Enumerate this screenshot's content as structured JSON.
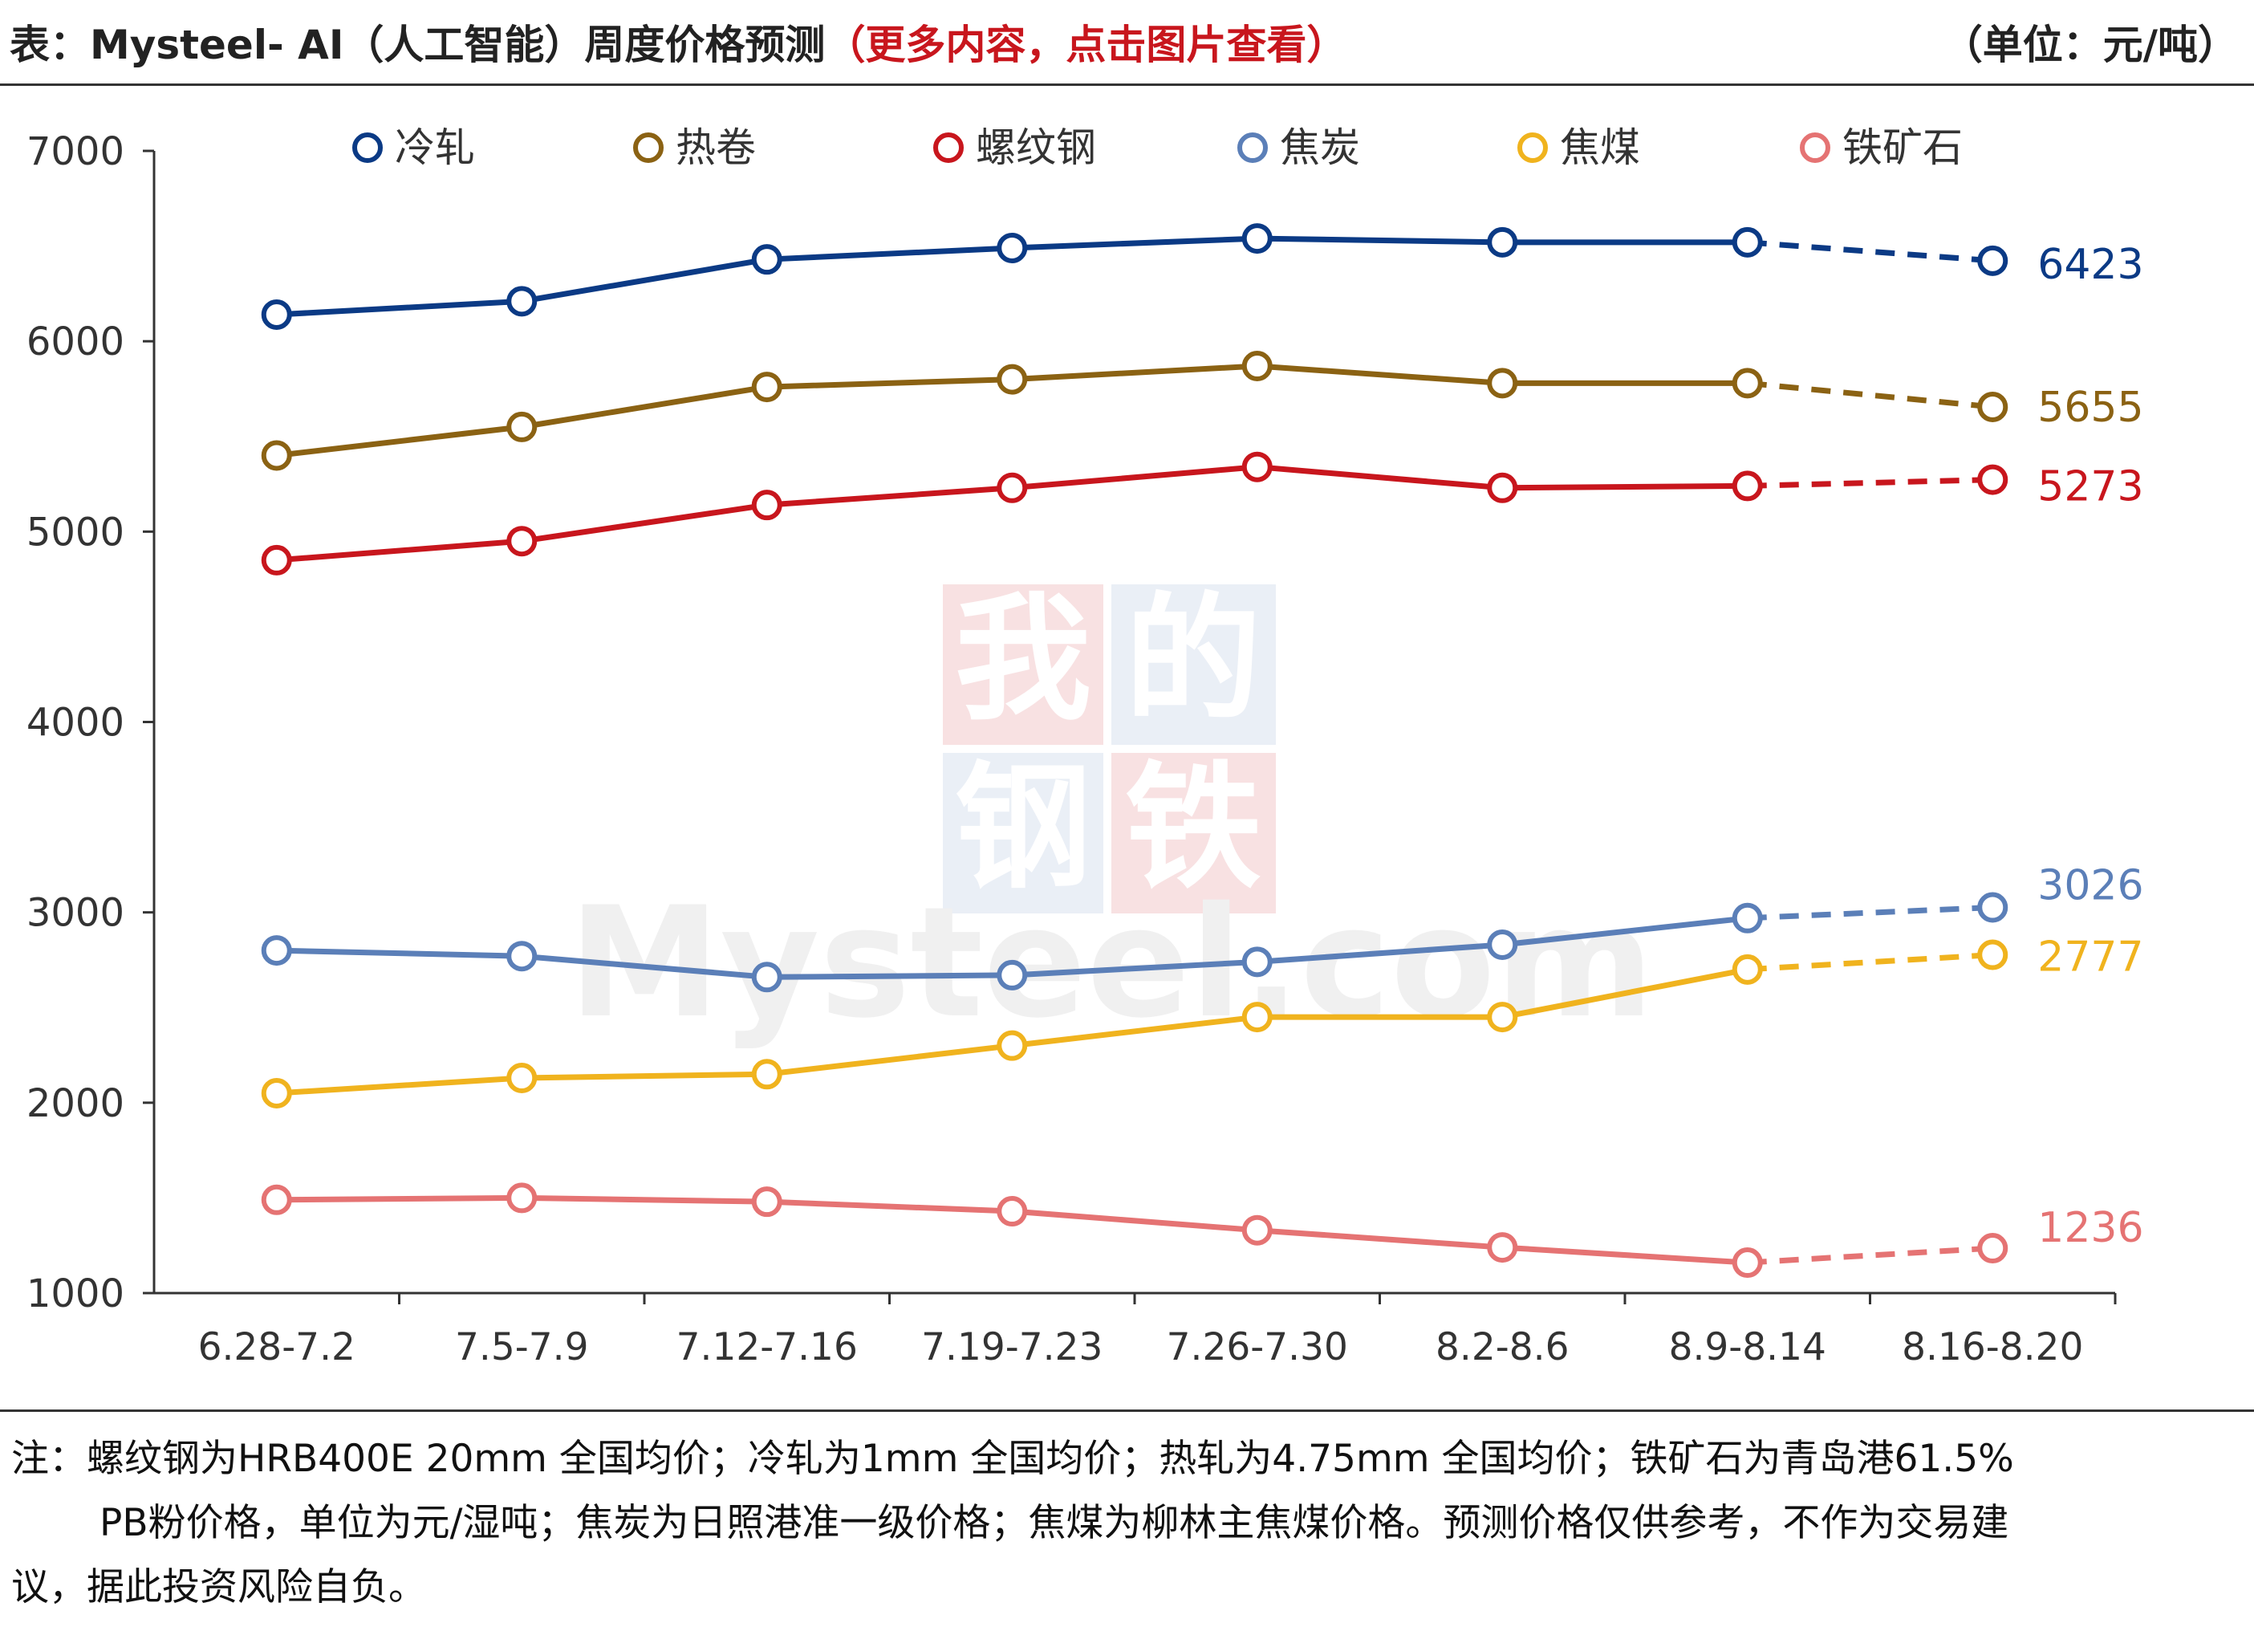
{
  "header": {
    "title_prefix": "表：Mysteel- AI（人工智能）周度价格预测",
    "title_accent": "（更多内容，点击图片查看）",
    "unit": "（单位：元/吨）"
  },
  "watermark": {
    "chars": [
      "我",
      "的",
      "钢",
      "铁"
    ],
    "text": "Mysteel.com"
  },
  "colors": {
    "冷轧": "#0b3a85",
    "热卷": "#8b6213",
    "螺纹钢": "#c8161d",
    "焦炭": "#5b7fb8",
    "焦煤": "#f0b31e",
    "铁矿石": "#e57373"
  },
  "chart_data": {
    "type": "line",
    "categories": [
      "6.28-7.2",
      "7.5-7.9",
      "7.12-7.16",
      "7.19-7.23",
      "7.26-7.30",
      "8.2-8.6",
      "8.9-8.14",
      "8.16-8.20"
    ],
    "ylim": [
      1000,
      7000
    ],
    "yticks": [
      1000,
      2000,
      3000,
      4000,
      5000,
      6000,
      7000
    ],
    "legend_position": "top",
    "forecast_from_index": 6,
    "series": [
      {
        "name": "冷轧",
        "values": [
          6140,
          6210,
          6430,
          6490,
          6540,
          6520,
          6520,
          6423
        ],
        "end_label": "6423"
      },
      {
        "name": "热卷",
        "values": [
          5400,
          5550,
          5760,
          5800,
          5870,
          5780,
          5780,
          5655
        ],
        "end_label": "5655"
      },
      {
        "name": "螺纹钢",
        "values": [
          4850,
          4950,
          5140,
          5230,
          5340,
          5230,
          5240,
          5273
        ],
        "end_label": "5273"
      },
      {
        "name": "焦炭",
        "values": [
          2800,
          2770,
          2660,
          2670,
          2740,
          2830,
          2970,
          3026
        ],
        "end_label": "3026"
      },
      {
        "name": "焦煤",
        "values": [
          2050,
          2130,
          2150,
          2300,
          2450,
          2450,
          2700,
          2777
        ],
        "end_label": "2777"
      },
      {
        "name": "铁矿石",
        "values": [
          1490,
          1500,
          1480,
          1430,
          1330,
          1240,
          1160,
          1236
        ],
        "end_label": "1236"
      }
    ]
  },
  "note": {
    "line1": "注：螺纹钢为HRB400E 20mm 全国均价；冷轧为1mm 全国均价；热轧为4.75mm 全国均价；铁矿石为青岛港61.5%",
    "line2": "PB粉价格，单位为元/湿吨；焦炭为日照港准一级价格；焦煤为柳林主焦煤价格。预测价格仅供参考，不作为交易建",
    "line3": "议，据此投资风险自负。"
  }
}
